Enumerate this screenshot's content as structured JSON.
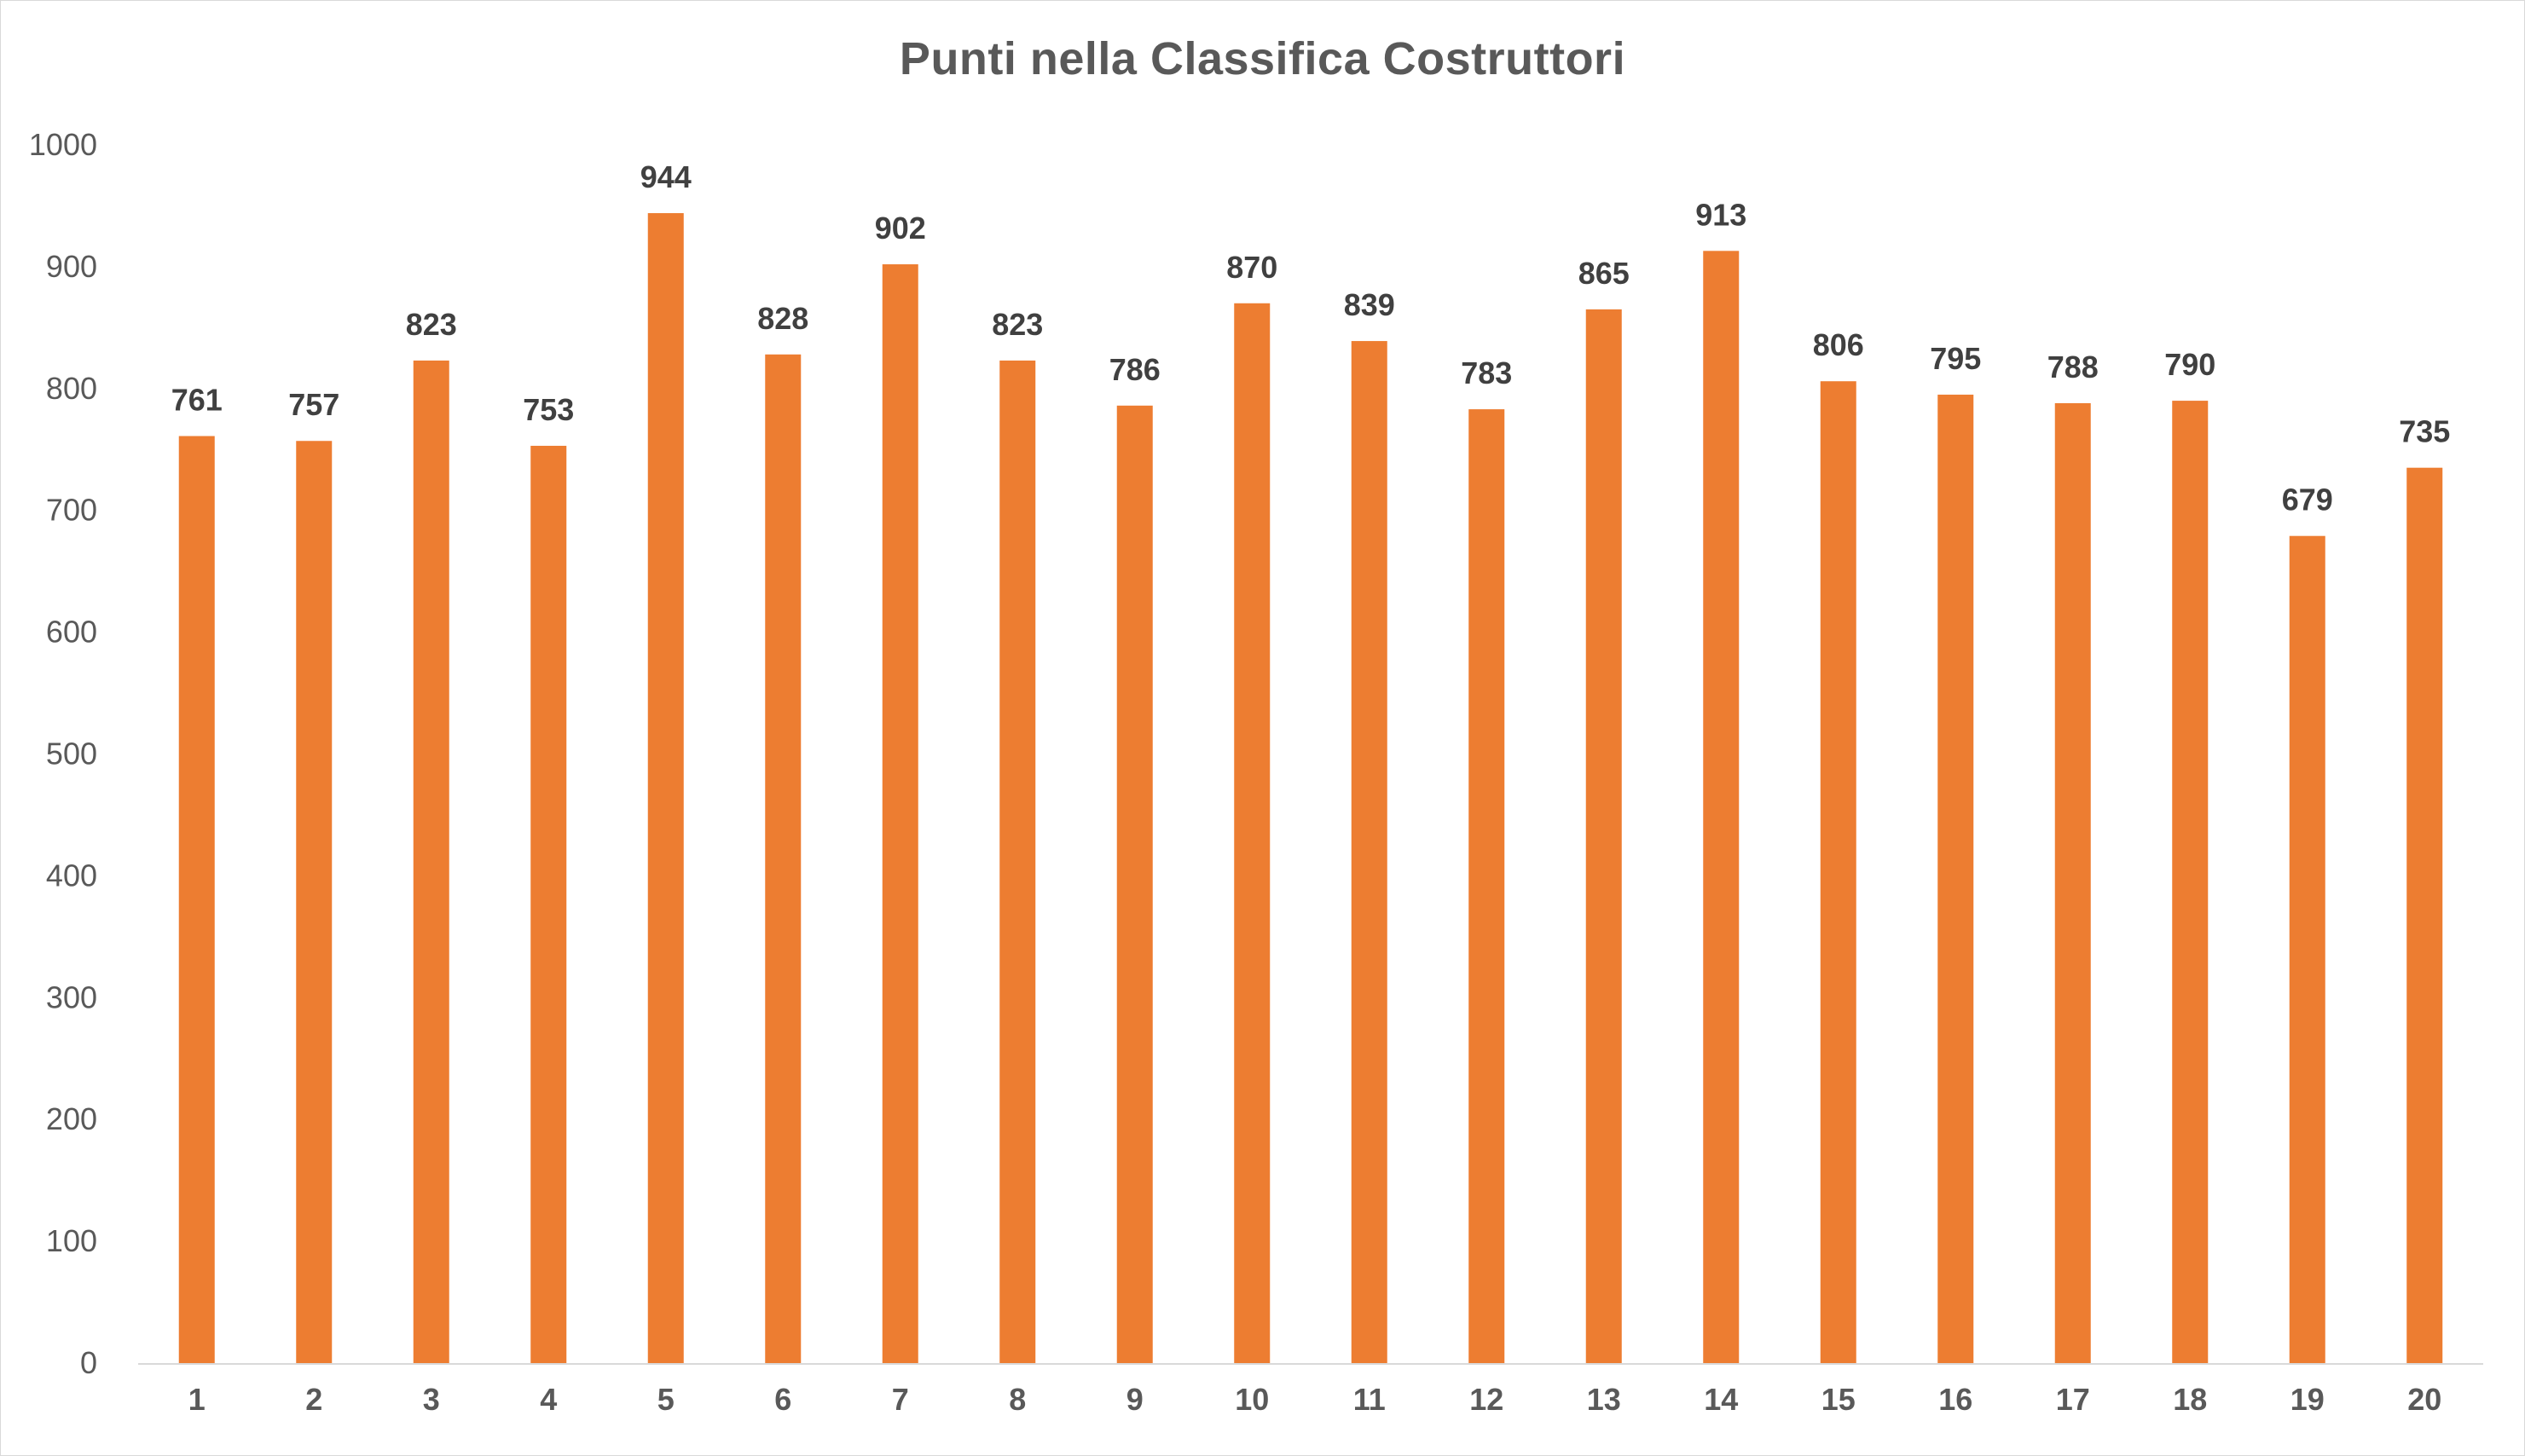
{
  "chart_data": {
    "type": "bar",
    "title": "Punti nella Classifica Costruttori",
    "xlabel": "",
    "ylabel": "",
    "categories": [
      "1",
      "2",
      "3",
      "4",
      "5",
      "6",
      "7",
      "8",
      "9",
      "10",
      "11",
      "12",
      "13",
      "14",
      "15",
      "16",
      "17",
      "18",
      "19",
      "20"
    ],
    "values": [
      761,
      757,
      823,
      753,
      944,
      828,
      902,
      823,
      786,
      870,
      839,
      783,
      865,
      913,
      806,
      795,
      788,
      790,
      679,
      735
    ],
    "ylim": [
      0,
      1000
    ],
    "yticks": [
      0,
      100,
      200,
      300,
      400,
      500,
      600,
      700,
      800,
      900,
      1000
    ],
    "grid": false,
    "data_labels": true,
    "legend": "none",
    "colors": {
      "bar": "#ED7D31",
      "axis": "#D9D9D9",
      "text": "#595959",
      "data_label": "#404040"
    }
  }
}
